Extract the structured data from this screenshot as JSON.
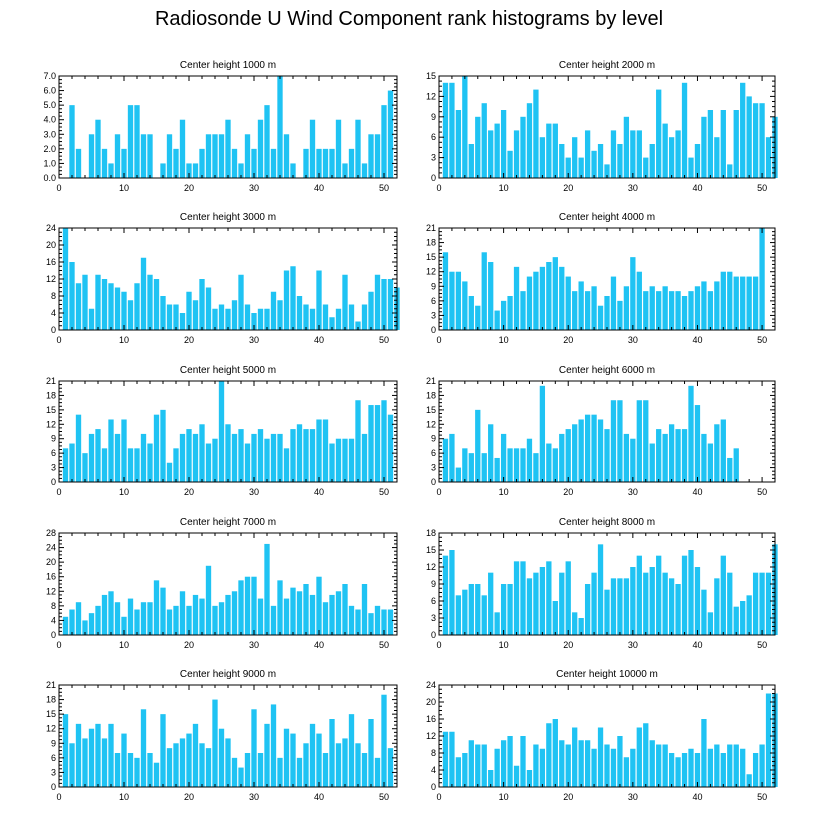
{
  "title": "Radiosonde U Wind Component rank histograms by level",
  "colors": {
    "bar": "#1fc3f3",
    "frame": "#000000"
  },
  "chart_data": [
    {
      "type": "bar",
      "title": "Center height 1000 m",
      "xlim": [
        0,
        52
      ],
      "ylim": [
        0,
        7
      ],
      "yticks": [
        "0.0",
        "1.0",
        "2.0",
        "3.0",
        "4.0",
        "5.0",
        "6.0",
        "7.0"
      ],
      "ytick_values": [
        0,
        1,
        2,
        3,
        4,
        5,
        6,
        7
      ],
      "xticks": [
        0,
        10,
        20,
        30,
        40,
        50
      ],
      "values": [
        0,
        5,
        2,
        0,
        3,
        4,
        2,
        1,
        3,
        2,
        5,
        5,
        3,
        3,
        0,
        1,
        3,
        2,
        4,
        1,
        1,
        2,
        3,
        3,
        3,
        4,
        2,
        1,
        3,
        2,
        4,
        5,
        2,
        7,
        3,
        1,
        0,
        2,
        4,
        2,
        2,
        2,
        4,
        1,
        2,
        4,
        1,
        3,
        3,
        5,
        6
      ]
    },
    {
      "type": "bar",
      "title": "Center height 2000 m",
      "xlim": [
        0,
        52
      ],
      "ylim": [
        0,
        15
      ],
      "yticks": [
        "0",
        "3",
        "6",
        "9",
        "12",
        "15"
      ],
      "ytick_values": [
        0,
        3,
        6,
        9,
        12,
        15
      ],
      "xticks": [
        0,
        10,
        20,
        30,
        40,
        50
      ],
      "values": [
        14,
        14,
        10,
        15,
        5,
        9,
        11,
        7,
        8,
        10,
        4,
        7,
        9,
        11,
        13,
        6,
        8,
        8,
        5,
        3,
        6,
        3,
        7,
        4,
        5,
        2,
        7,
        5,
        9,
        7,
        7,
        3,
        5,
        13,
        8,
        6,
        7,
        14,
        3,
        5,
        9,
        10,
        6,
        10,
        2,
        10,
        14,
        12,
        11,
        11,
        6,
        9
      ]
    },
    {
      "type": "bar",
      "title": "Center height 3000 m",
      "xlim": [
        0,
        52
      ],
      "ylim": [
        0,
        24
      ],
      "yticks": [
        "0",
        "4",
        "8",
        "12",
        "16",
        "20",
        "24"
      ],
      "ytick_values": [
        0,
        4,
        8,
        12,
        16,
        20,
        24
      ],
      "xticks": [
        0,
        10,
        20,
        30,
        40,
        50
      ],
      "values": [
        24,
        16,
        11,
        13,
        5,
        13,
        12,
        11,
        10,
        9,
        7,
        11,
        17,
        13,
        12,
        8,
        6,
        6,
        4,
        9,
        7,
        12,
        10,
        5,
        6,
        5,
        7,
        13,
        6,
        4,
        5,
        5,
        9,
        7,
        14,
        15,
        8,
        6,
        5,
        14,
        6,
        3,
        5,
        13,
        6,
        2,
        6,
        9,
        13,
        12,
        12,
        10
      ]
    },
    {
      "type": "bar",
      "title": "Center height 4000 m",
      "xlim": [
        0,
        52
      ],
      "ylim": [
        0,
        21
      ],
      "yticks": [
        "0",
        "3",
        "6",
        "9",
        "12",
        "15",
        "18",
        "21"
      ],
      "ytick_values": [
        0,
        3,
        6,
        9,
        12,
        15,
        18,
        21
      ],
      "xticks": [
        0,
        10,
        20,
        30,
        40,
        50
      ],
      "values": [
        16,
        12,
        12,
        10,
        7,
        5,
        16,
        14,
        4,
        6,
        7,
        13,
        8,
        11,
        12,
        13,
        14,
        15,
        13,
        11,
        8,
        10,
        8,
        9,
        5,
        7,
        11,
        6,
        9,
        15,
        12,
        8,
        9,
        8,
        9,
        8,
        8,
        7,
        8,
        9,
        10,
        8,
        10,
        12,
        12,
        11,
        11,
        11,
        11,
        21
      ]
    },
    {
      "type": "bar",
      "title": "Center height 5000 m",
      "xlim": [
        0,
        52
      ],
      "ylim": [
        0,
        21
      ],
      "yticks": [
        "0",
        "3",
        "6",
        "9",
        "12",
        "15",
        "18",
        "21"
      ],
      "ytick_values": [
        0,
        3,
        6,
        9,
        12,
        15,
        18,
        21
      ],
      "xticks": [
        0,
        10,
        20,
        30,
        40,
        50
      ],
      "values": [
        7,
        8,
        14,
        6,
        10,
        11,
        7,
        13,
        10,
        13,
        7,
        7,
        10,
        8,
        14,
        15,
        4,
        7,
        10,
        11,
        10,
        12,
        8,
        9,
        21,
        12,
        10,
        11,
        8,
        10,
        11,
        9,
        10,
        10,
        7,
        11,
        12,
        11,
        11,
        13,
        13,
        8,
        9,
        9,
        9,
        17,
        10,
        16,
        16,
        17,
        14
      ]
    },
    {
      "type": "bar",
      "title": "Center height 6000 m",
      "xlim": [
        0,
        52
      ],
      "ylim": [
        0,
        21
      ],
      "yticks": [
        "0",
        "3",
        "6",
        "9",
        "12",
        "15",
        "18",
        "21"
      ],
      "ytick_values": [
        0,
        3,
        6,
        9,
        12,
        15,
        18,
        21
      ],
      "xticks": [
        0,
        10,
        20,
        30,
        40,
        50
      ],
      "values": [
        9,
        10,
        3,
        7,
        6,
        15,
        6,
        12,
        5,
        10,
        7,
        7,
        7,
        9,
        6,
        20,
        8,
        7,
        10,
        11,
        12,
        13,
        14,
        14,
        13,
        11,
        17,
        17,
        10,
        9,
        17,
        17,
        8,
        11,
        10,
        12,
        11,
        11,
        20,
        16,
        10,
        8,
        12,
        13,
        5,
        7
      ]
    },
    {
      "type": "bar",
      "title": "Center height 7000 m",
      "xlim": [
        0,
        52
      ],
      "ylim": [
        0,
        28
      ],
      "yticks": [
        "0",
        "4",
        "8",
        "12",
        "16",
        "20",
        "24",
        "28"
      ],
      "ytick_values": [
        0,
        4,
        8,
        12,
        16,
        20,
        24,
        28
      ],
      "xticks": [
        0,
        10,
        20,
        30,
        40,
        50
      ],
      "values": [
        5,
        7,
        9,
        4,
        6,
        8,
        11,
        12,
        9,
        5,
        10,
        7,
        9,
        9,
        15,
        13,
        7,
        8,
        12,
        8,
        11,
        10,
        19,
        8,
        9,
        11,
        12,
        15,
        16,
        16,
        10,
        25,
        8,
        15,
        10,
        13,
        12,
        14,
        11,
        16,
        9,
        11,
        12,
        14,
        8,
        7,
        14,
        6,
        8,
        7,
        7
      ]
    },
    {
      "type": "bar",
      "title": "Center height 8000 m",
      "xlim": [
        0,
        52
      ],
      "ylim": [
        0,
        18
      ],
      "yticks": [
        "0",
        "3",
        "6",
        "9",
        "12",
        "15",
        "18"
      ],
      "ytick_values": [
        0,
        3,
        6,
        9,
        12,
        15,
        18
      ],
      "xticks": [
        0,
        10,
        20,
        30,
        40,
        50
      ],
      "values": [
        14,
        15,
        7,
        8,
        9,
        9,
        7,
        11,
        4,
        9,
        9,
        13,
        13,
        10,
        11,
        12,
        13,
        6,
        11,
        13,
        4,
        3,
        9,
        11,
        16,
        8,
        10,
        10,
        10,
        12,
        14,
        11,
        12,
        14,
        11,
        10,
        9,
        14,
        15,
        12,
        8,
        4,
        10,
        14,
        11,
        5,
        6,
        7,
        11,
        11,
        11,
        16
      ]
    },
    {
      "type": "bar",
      "title": "Center height 9000 m",
      "xlim": [
        0,
        52
      ],
      "ylim": [
        0,
        21
      ],
      "yticks": [
        "0",
        "3",
        "6",
        "9",
        "12",
        "15",
        "18",
        "21"
      ],
      "ytick_values": [
        0,
        3,
        6,
        9,
        12,
        15,
        18,
        21
      ],
      "xticks": [
        0,
        10,
        20,
        30,
        40,
        50
      ],
      "values": [
        15,
        9,
        13,
        10,
        12,
        13,
        10,
        13,
        7,
        11,
        7,
        6,
        16,
        7,
        5,
        15,
        8,
        9,
        10,
        11,
        13,
        9,
        8,
        18,
        12,
        10,
        6,
        4,
        7,
        16,
        7,
        13,
        17,
        6,
        12,
        11,
        6,
        9,
        13,
        11,
        7,
        14,
        9,
        10,
        15,
        9,
        7,
        14,
        6,
        19,
        8
      ]
    },
    {
      "type": "bar",
      "title": "Center height 10000 m",
      "xlim": [
        0,
        52
      ],
      "ylim": [
        0,
        24
      ],
      "yticks": [
        "0",
        "4",
        "8",
        "12",
        "16",
        "20",
        "24"
      ],
      "ytick_values": [
        0,
        4,
        8,
        12,
        16,
        20,
        24
      ],
      "xticks": [
        0,
        10,
        20,
        30,
        40,
        50
      ],
      "values": [
        13,
        13,
        7,
        8,
        11,
        10,
        10,
        4,
        9,
        11,
        12,
        5,
        12,
        4,
        10,
        9,
        15,
        16,
        11,
        10,
        14,
        11,
        11,
        9,
        14,
        10,
        9,
        12,
        7,
        9,
        14,
        15,
        11,
        10,
        10,
        8,
        7,
        8,
        9,
        8,
        16,
        9,
        10,
        8,
        10,
        10,
        9,
        3,
        8,
        10,
        22,
        22
      ]
    }
  ]
}
